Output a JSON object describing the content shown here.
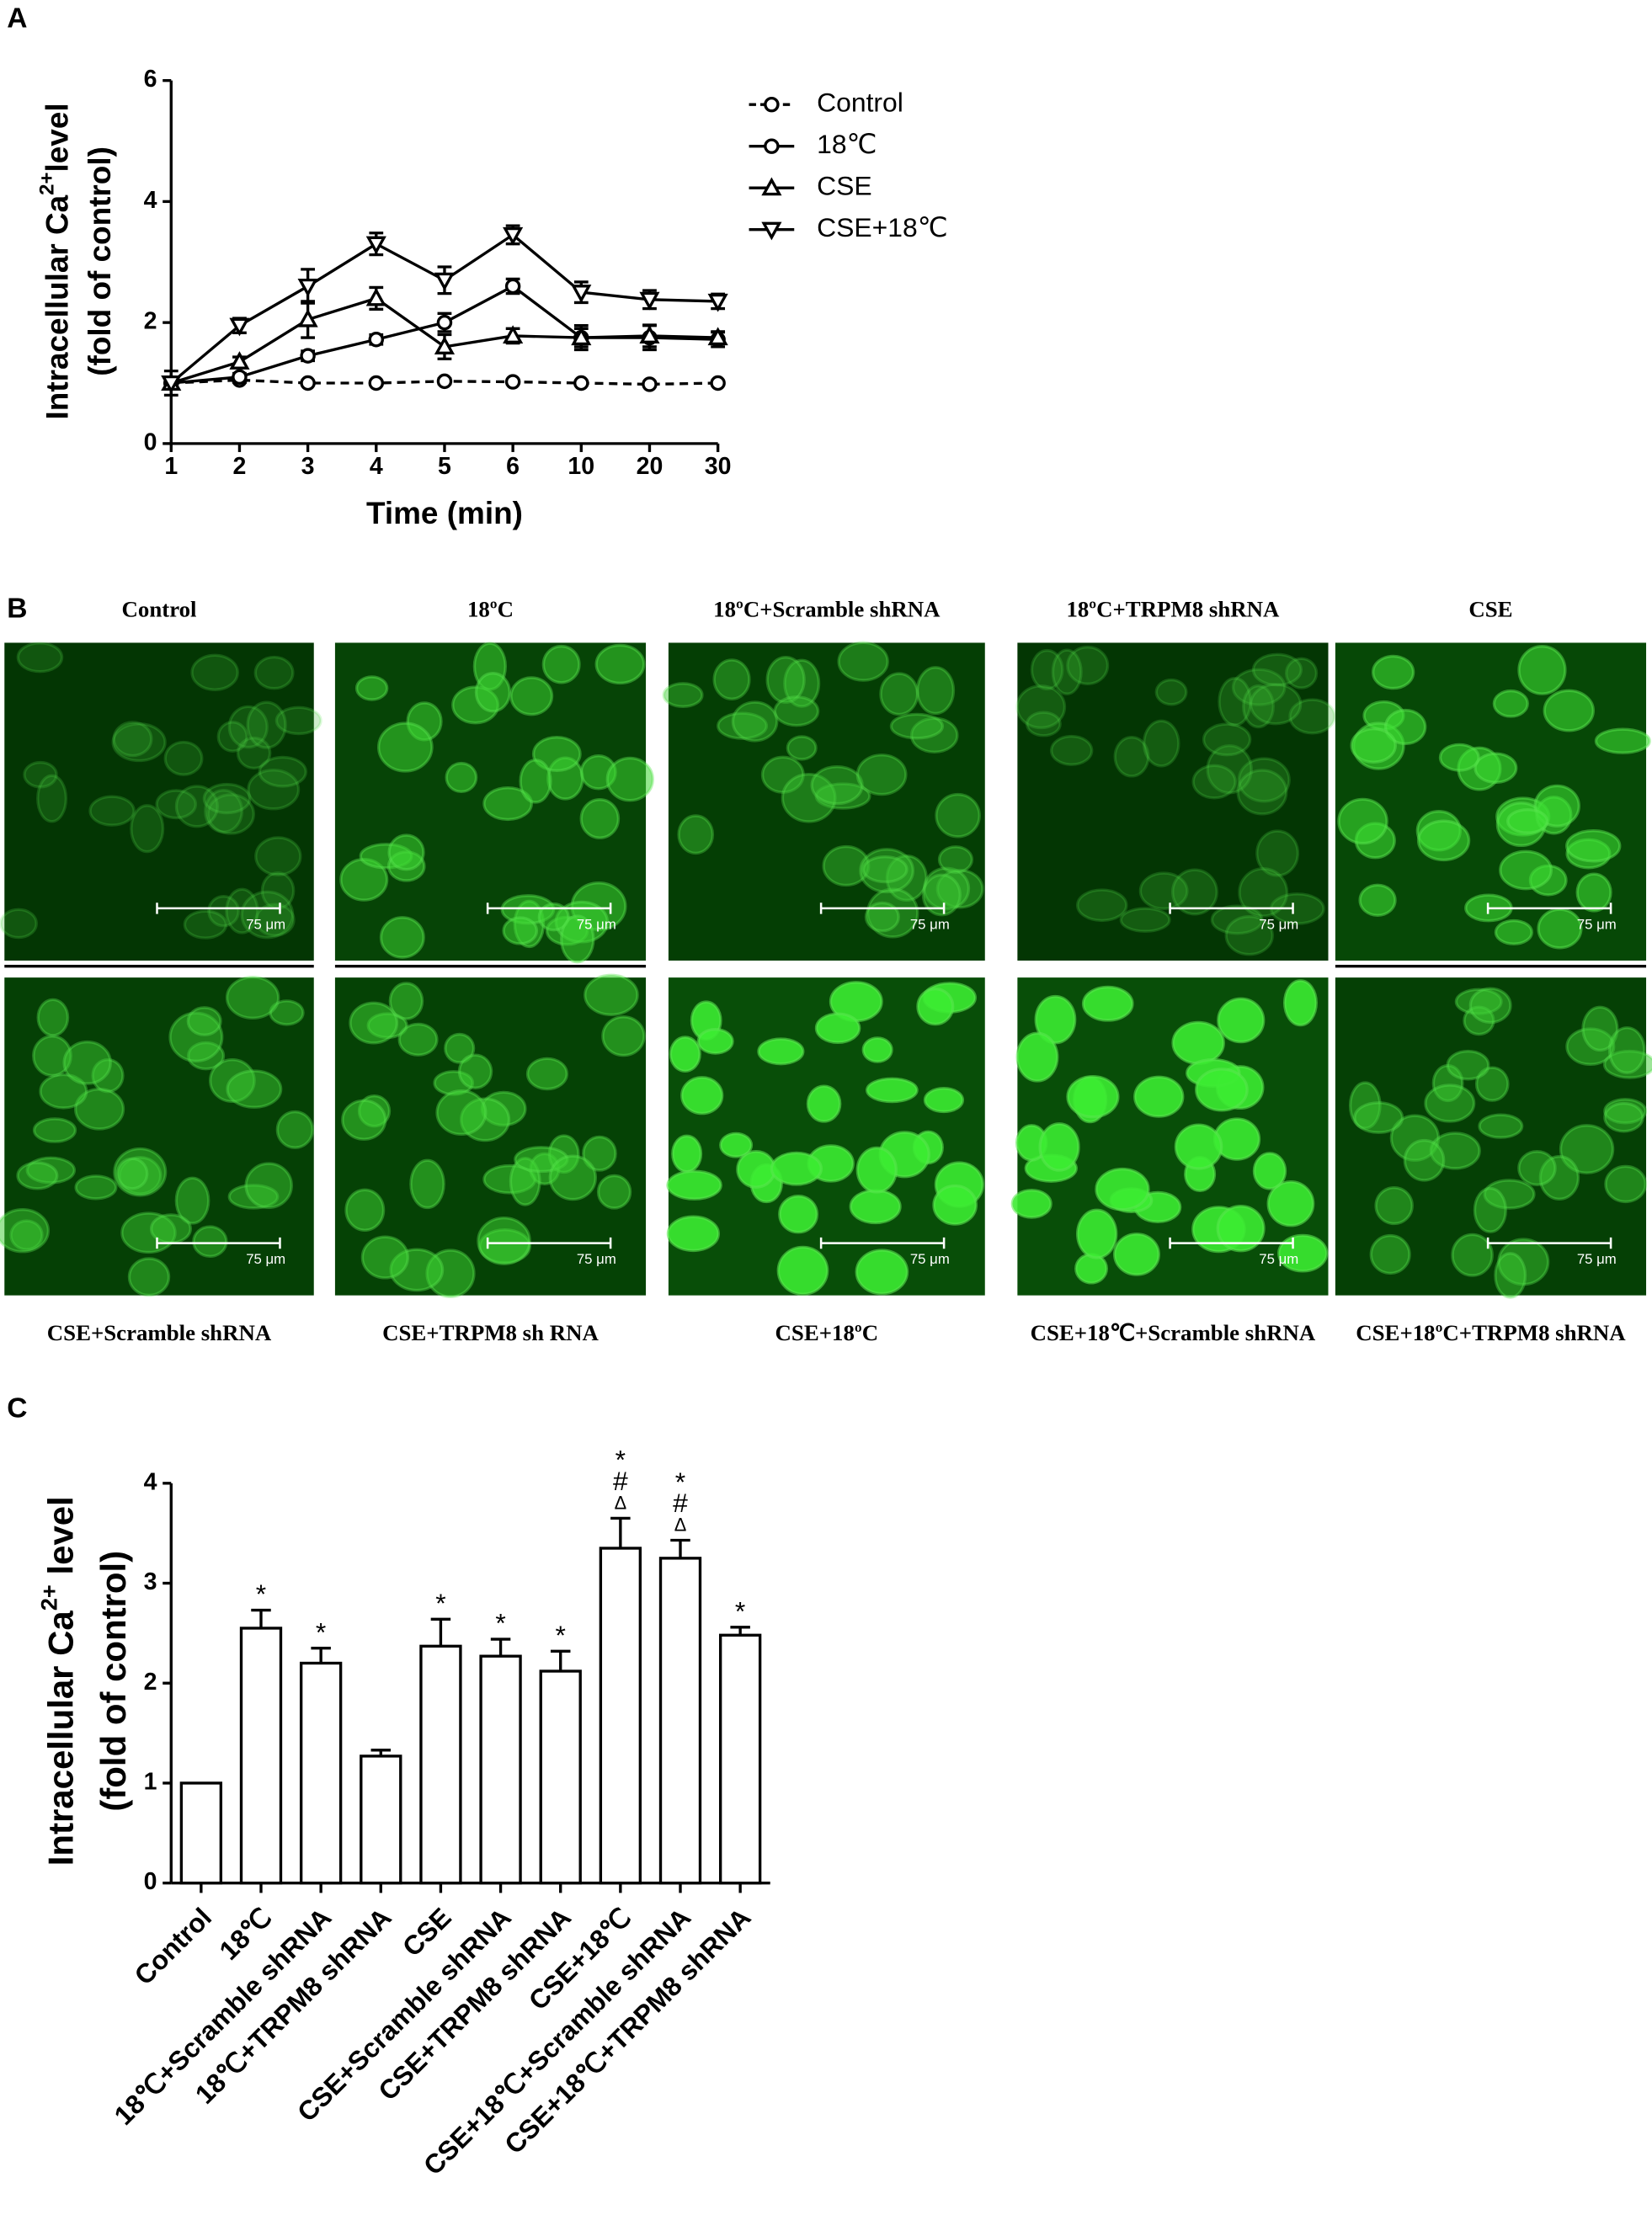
{
  "chart_data": [
    {
      "type": "line",
      "label": "A",
      "categories": [
        "1",
        "2",
        "3",
        "4",
        "5",
        "6",
        "10",
        "20",
        "30"
      ],
      "xlabel": "Time (min)",
      "ylabel": [
        "Intracellular Ca",
        "2+",
        "level"
      ],
      "ylabel2": "(fold of control)",
      "ylim": [
        0,
        6
      ],
      "yticks": [
        0,
        2,
        4,
        6
      ],
      "series": [
        {
          "name": "Control",
          "color": "#000000",
          "marker": "circle",
          "dashed": true,
          "values": [
            1,
            1.05,
            1.0,
            1.0,
            1.03,
            1.02,
            1.0,
            0.98,
            1.0
          ],
          "errors": [
            0.05,
            0.04,
            0.03,
            0.03,
            0.04,
            0.03,
            0.03,
            0.03,
            0.03
          ]
        },
        {
          "name": "18℃",
          "color": "#000000",
          "marker": "circle",
          "dashed": false,
          "values": [
            1,
            1.1,
            1.45,
            1.72,
            2.0,
            2.6,
            1.75,
            1.75,
            1.72
          ],
          "errors": [
            0.05,
            0.06,
            0.08,
            0.08,
            0.15,
            0.12,
            0.15,
            0.2,
            0.12
          ]
        },
        {
          "name": "CSE",
          "color": "#000000",
          "marker": "triangle-up",
          "dashed": false,
          "values": [
            1,
            1.35,
            2.05,
            2.4,
            1.6,
            1.78,
            1.75,
            1.78,
            1.75
          ],
          "errors": [
            0.08,
            0.08,
            0.3,
            0.18,
            0.2,
            0.12,
            0.2,
            0.18,
            0.1
          ]
        },
        {
          "name": "CSE+18℃",
          "color": "#000000",
          "marker": "triangle-down",
          "dashed": false,
          "values": [
            1,
            1.95,
            2.6,
            3.3,
            2.7,
            3.45,
            2.5,
            2.38,
            2.35
          ],
          "errors": [
            0.2,
            0.12,
            0.28,
            0.18,
            0.22,
            0.15,
            0.17,
            0.15,
            0.12
          ]
        }
      ]
    },
    {
      "type": "bar",
      "label": "C",
      "categories": [
        "Control",
        "18℃",
        "18℃+Scramble shRNA",
        "18℃+TRPM8 shRNA",
        "CSE",
        "CSE+Scramble shRNA",
        "CSE+TRPM8 shRNA",
        "CSE+18℃",
        "CSE+18℃+Scramble shRNA",
        "CSE+18℃+TRPM8 shRNA"
      ],
      "ylabel": [
        "Intracellular Ca",
        "2+",
        " level"
      ],
      "ylabel2": "(fold of control)",
      "ylim": [
        0,
        4
      ],
      "yticks": [
        0,
        1,
        2,
        3,
        4
      ],
      "color": "#ffffff",
      "values": [
        1,
        2.55,
        2.2,
        1.27,
        2.37,
        2.27,
        2.12,
        3.35,
        3.25,
        2.48
      ],
      "errors": [
        0,
        0.18,
        0.15,
        0.06,
        0.27,
        0.17,
        0.2,
        0.3,
        0.18,
        0.08
      ],
      "annotations": [
        null,
        [
          "*"
        ],
        [
          "*"
        ],
        null,
        [
          "*"
        ],
        [
          "*"
        ],
        [
          "*"
        ],
        [
          "Δ",
          "#",
          "*"
        ],
        [
          "Δ",
          "#",
          "*"
        ],
        [
          "*"
        ]
      ]
    }
  ],
  "micrographs": {
    "label": "B",
    "top_titles": [
      "Control",
      "18ºC",
      "18ºC+Scramble shRNA",
      "18ºC+TRPM8 shRNA",
      "CSE"
    ],
    "bottom_titles": [
      "CSE+Scramble shRNA",
      "CSE+TRPM8 sh RNA",
      "CSE+18ºC",
      "CSE+18℃+Scramble shRNA",
      "CSE+18ºC+TRPM8 shRNA"
    ],
    "scale_bar": "75 μm"
  }
}
